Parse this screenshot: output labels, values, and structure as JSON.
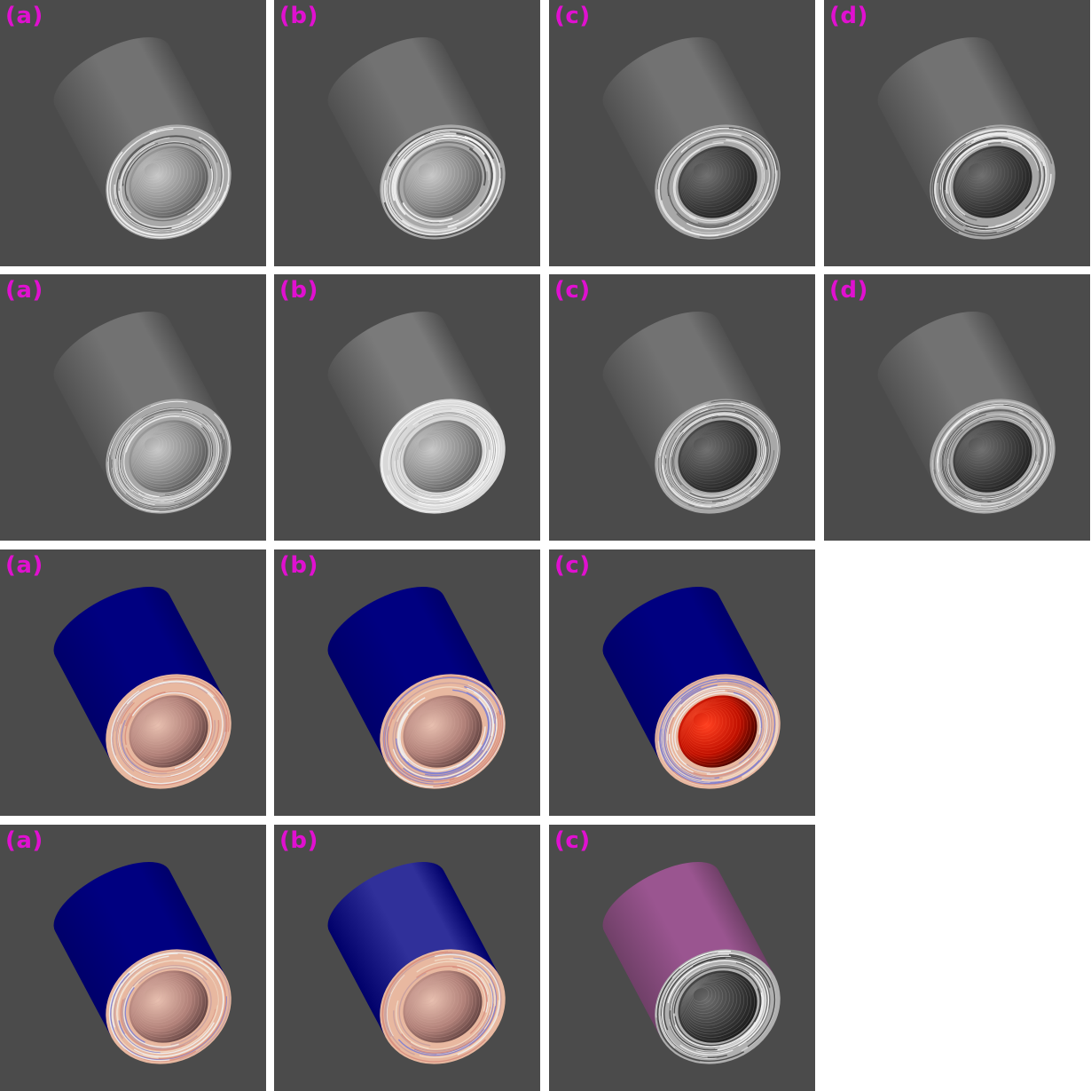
{
  "figure": {
    "background": "#4b4b4b",
    "label_color": "#e010d0",
    "rows": [
      {
        "panels": [
          {
            "label": "(a)",
            "style": "gray",
            "inner": "light"
          },
          {
            "label": "(b)",
            "style": "gray",
            "inner": "light",
            "contrast": "high"
          },
          {
            "label": "(c)",
            "style": "gray",
            "inner": "dark"
          },
          {
            "label": "(d)",
            "style": "gray",
            "inner": "dark",
            "noise": "coarse"
          }
        ]
      },
      {
        "panels": [
          {
            "label": "(a)",
            "style": "gray",
            "inner": "light",
            "fibers": "fine"
          },
          {
            "label": "(b)",
            "style": "gray",
            "inner": "light",
            "fibers": "fine",
            "brightness": "high"
          },
          {
            "label": "(c)",
            "style": "gray",
            "inner": "dark",
            "fibers": "fine"
          },
          {
            "label": "(d)",
            "style": "gray",
            "inner": "dark",
            "fibers": "fine"
          }
        ]
      },
      {
        "panels": [
          {
            "label": "(a)",
            "style": "blue-red",
            "inner": "pink"
          },
          {
            "label": "(b)",
            "style": "blue-red",
            "inner": "pink"
          },
          {
            "label": "(c)",
            "style": "blue-red",
            "inner": "red"
          }
        ]
      },
      {
        "panels": [
          {
            "label": "(a)",
            "style": "blue-red",
            "inner": "pink"
          },
          {
            "label": "(b)",
            "style": "blue-red",
            "inner": "pink",
            "outer_color": "#30309a"
          },
          {
            "label": "(c)",
            "style": "magenta-gray",
            "inner": "dark",
            "outer_color": "#9a5590"
          }
        ]
      }
    ]
  }
}
